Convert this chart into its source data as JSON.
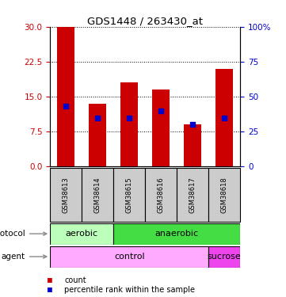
{
  "title": "GDS1448 / 263430_at",
  "samples": [
    "GSM38613",
    "GSM38614",
    "GSM38615",
    "GSM38616",
    "GSM38617",
    "GSM38618"
  ],
  "count_values": [
    30,
    13.5,
    18,
    16.5,
    9,
    21
  ],
  "percentile_values": [
    43,
    35,
    35,
    40,
    30,
    35
  ],
  "left_ylim": [
    0,
    30
  ],
  "right_ylim": [
    0,
    100
  ],
  "left_yticks": [
    0,
    7.5,
    15,
    22.5,
    30
  ],
  "right_yticks": [
    0,
    25,
    50,
    75,
    100
  ],
  "right_yticklabels": [
    "0",
    "25",
    "50",
    "75",
    "100%"
  ],
  "bar_color": "#cc0000",
  "percentile_color": "#0000cc",
  "grid_color": "#000000",
  "protocol_aerobic_color": "#bbffbb",
  "protocol_anaerobic_color": "#44dd44",
  "agent_control_color": "#ffaaff",
  "agent_sucrose_color": "#ee44ee",
  "sample_label_bg": "#cccccc",
  "bar_width": 0.55,
  "figsize": [
    3.61,
    3.75
  ],
  "dpi": 100
}
